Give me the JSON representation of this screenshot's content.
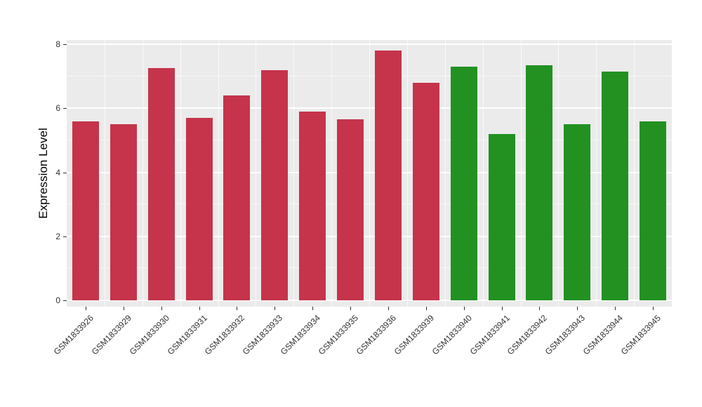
{
  "chart_data": {
    "type": "bar",
    "title": "",
    "xlabel": "",
    "ylabel": "Expression Level",
    "ylim": [
      0,
      8
    ],
    "yticks": [
      0,
      2,
      4,
      6,
      8
    ],
    "yminor": [
      1,
      3,
      5,
      7
    ],
    "categories": [
      "GSM1833926",
      "GSM1833929",
      "GSM1833930",
      "GSM1833931",
      "GSM1833932",
      "GSM1833933",
      "GSM1833934",
      "GSM1833935",
      "GSM1833936",
      "GSM1833939",
      "GSM1833940",
      "GSM1833941",
      "GSM1833942",
      "GSM1833943",
      "GSM1833944",
      "GSM1833945"
    ],
    "values": [
      5.6,
      5.5,
      7.25,
      5.7,
      6.4,
      7.2,
      5.9,
      5.65,
      7.8,
      6.8,
      7.3,
      5.2,
      7.35,
      5.5,
      7.15,
      5.6
    ],
    "groups": [
      "red",
      "red",
      "red",
      "red",
      "red",
      "red",
      "red",
      "red",
      "red",
      "red",
      "green",
      "green",
      "green",
      "green",
      "green",
      "green"
    ],
    "group_colors": {
      "red": "#C5344B",
      "green": "#229122"
    },
    "panel_background": "#EBEBEB",
    "gridline_color": "#FFFFFF",
    "tick_color": "#333333",
    "legend": "none",
    "grid": "on"
  }
}
